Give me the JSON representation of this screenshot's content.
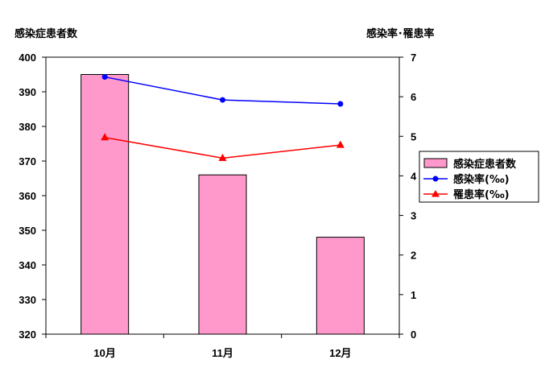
{
  "chart_data": {
    "type": "bar",
    "categories": [
      "10月",
      "11月",
      "12月"
    ],
    "bar_series": {
      "name": "感染症患者数",
      "values": [
        395,
        366,
        348
      ],
      "color": "#ff99cc"
    },
    "line_series": [
      {
        "name": "感染率(‰)",
        "values": [
          6.5,
          5.92,
          5.82
        ],
        "color": "#0000ff",
        "marker": "circle"
      },
      {
        "name": "罹患率(‰)",
        "values": [
          4.97,
          4.45,
          4.78
        ],
        "color": "#ff0000",
        "marker": "triangle"
      }
    ],
    "ylabel_left": "感染症患者数",
    "ylabel_right": "感染率･罹患率",
    "ylim_left": [
      320,
      400
    ],
    "yticks_left": [
      "320",
      "330",
      "340",
      "350",
      "360",
      "370",
      "380",
      "390",
      "400"
    ],
    "ylim_right": [
      0,
      7
    ],
    "yticks_right": [
      "0",
      "1",
      "2",
      "3",
      "4",
      "5",
      "6",
      "7"
    ],
    "legend_position": "right",
    "grid": false
  }
}
